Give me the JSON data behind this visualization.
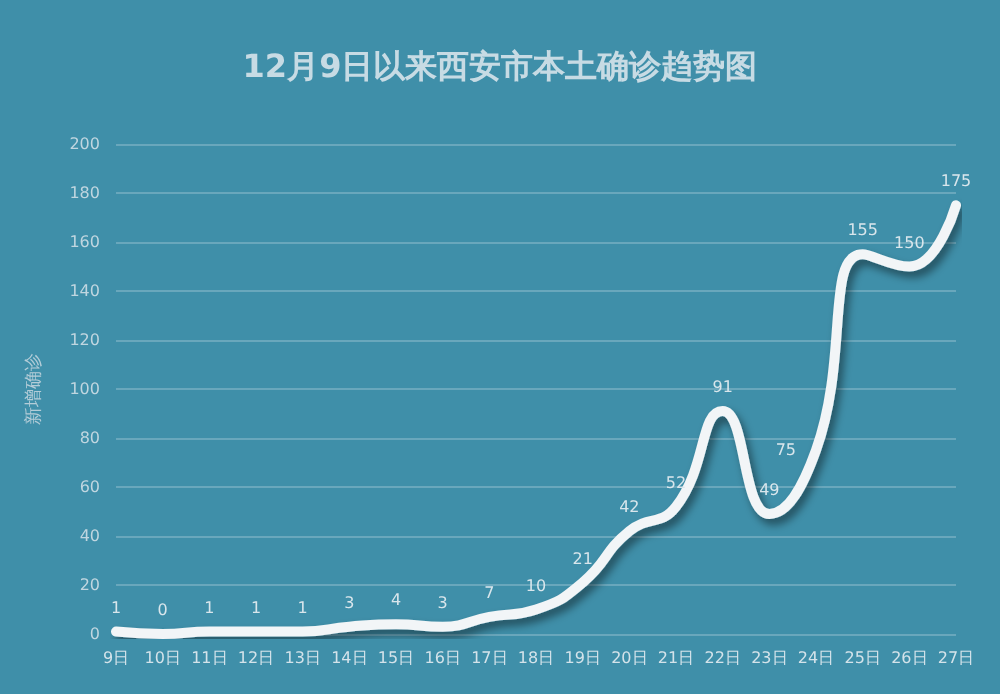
{
  "chart_data": {
    "type": "line",
    "title": "12月9日以来西安市本土确诊趋势图",
    "ylabel": "新增确诊",
    "categories": [
      "9日",
      "10日",
      "11日",
      "12日",
      "13日",
      "14日",
      "15日",
      "16日",
      "17日",
      "18日",
      "19日",
      "20日",
      "21日",
      "22日",
      "23日",
      "24日",
      "25日",
      "26日",
      "27日"
    ],
    "series": [
      {
        "color": "#f2f5f7",
        "values": [
          1,
          0,
          1,
          1,
          1,
          3,
          4,
          3,
          7,
          10,
          21,
          42,
          52,
          91,
          49,
          75,
          155,
          150,
          175
        ]
      }
    ],
    "ylim": [
      0,
      200
    ],
    "yticks": [
      0,
      20,
      40,
      60,
      80,
      100,
      120,
      140,
      160,
      180,
      200
    ],
    "grid": "y",
    "data_labels": true,
    "marker": "none",
    "line_style": "solid"
  }
}
